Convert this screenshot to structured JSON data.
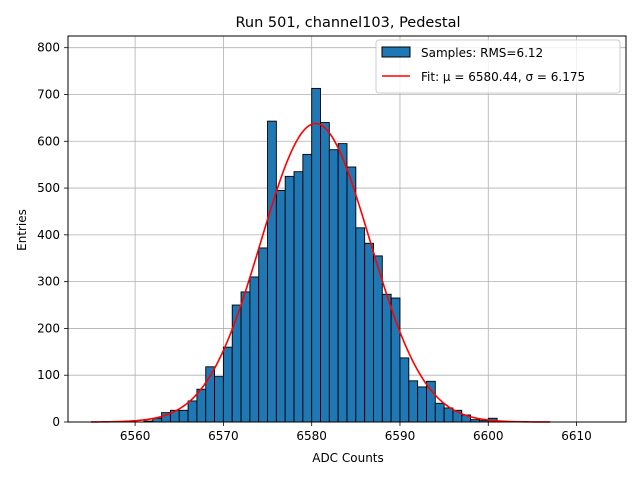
{
  "chart_data": {
    "type": "bar",
    "title": "Run 501, channel103, Pedestal",
    "xlabel": "ADC Counts",
    "ylabel": "Entries",
    "xlim": [
      6552.4,
      6615.6
    ],
    "ylim": [
      0,
      825
    ],
    "xticks": [
      6560,
      6570,
      6580,
      6590,
      6600,
      6610
    ],
    "yticks": [
      0,
      100,
      200,
      300,
      400,
      500,
      600,
      700,
      800
    ],
    "grid": true,
    "legend_position": "top-right",
    "histogram": {
      "name": "Samples: RMS=6.12",
      "color": "#1f77b4",
      "bin_width": 1,
      "bins": [
        {
          "x": 6561,
          "value": 2
        },
        {
          "x": 6562,
          "value": 8
        },
        {
          "x": 6563,
          "value": 20
        },
        {
          "x": 6564,
          "value": 25
        },
        {
          "x": 6565,
          "value": 25
        },
        {
          "x": 6566,
          "value": 45
        },
        {
          "x": 6567,
          "value": 70
        },
        {
          "x": 6568,
          "value": 118
        },
        {
          "x": 6569,
          "value": 97
        },
        {
          "x": 6570,
          "value": 160
        },
        {
          "x": 6571,
          "value": 250
        },
        {
          "x": 6572,
          "value": 278
        },
        {
          "x": 6573,
          "value": 310
        },
        {
          "x": 6574,
          "value": 372
        },
        {
          "x": 6575,
          "value": 643
        },
        {
          "x": 6576,
          "value": 495
        },
        {
          "x": 6577,
          "value": 525
        },
        {
          "x": 6578,
          "value": 535
        },
        {
          "x": 6579,
          "value": 572
        },
        {
          "x": 6580,
          "value": 713
        },
        {
          "x": 6581,
          "value": 640
        },
        {
          "x": 6582,
          "value": 582
        },
        {
          "x": 6583,
          "value": 595
        },
        {
          "x": 6584,
          "value": 545
        },
        {
          "x": 6585,
          "value": 415
        },
        {
          "x": 6586,
          "value": 382
        },
        {
          "x": 6587,
          "value": 355
        },
        {
          "x": 6588,
          "value": 273
        },
        {
          "x": 6589,
          "value": 265
        },
        {
          "x": 6590,
          "value": 137
        },
        {
          "x": 6591,
          "value": 88
        },
        {
          "x": 6592,
          "value": 75
        },
        {
          "x": 6593,
          "value": 87
        },
        {
          "x": 6594,
          "value": 40
        },
        {
          "x": 6595,
          "value": 30
        },
        {
          "x": 6596,
          "value": 25
        },
        {
          "x": 6597,
          "value": 15
        },
        {
          "x": 6598,
          "value": 5
        },
        {
          "x": 6599,
          "value": 3
        },
        {
          "x": 6600,
          "value": 8
        }
      ]
    },
    "fit": {
      "name": "Fit: μ = 6580.44, σ = 6.175",
      "color": "#ff0000",
      "mu": 6580.44,
      "sigma": 6.175,
      "amplitude": 638,
      "x_range": [
        6555,
        6607
      ]
    }
  }
}
